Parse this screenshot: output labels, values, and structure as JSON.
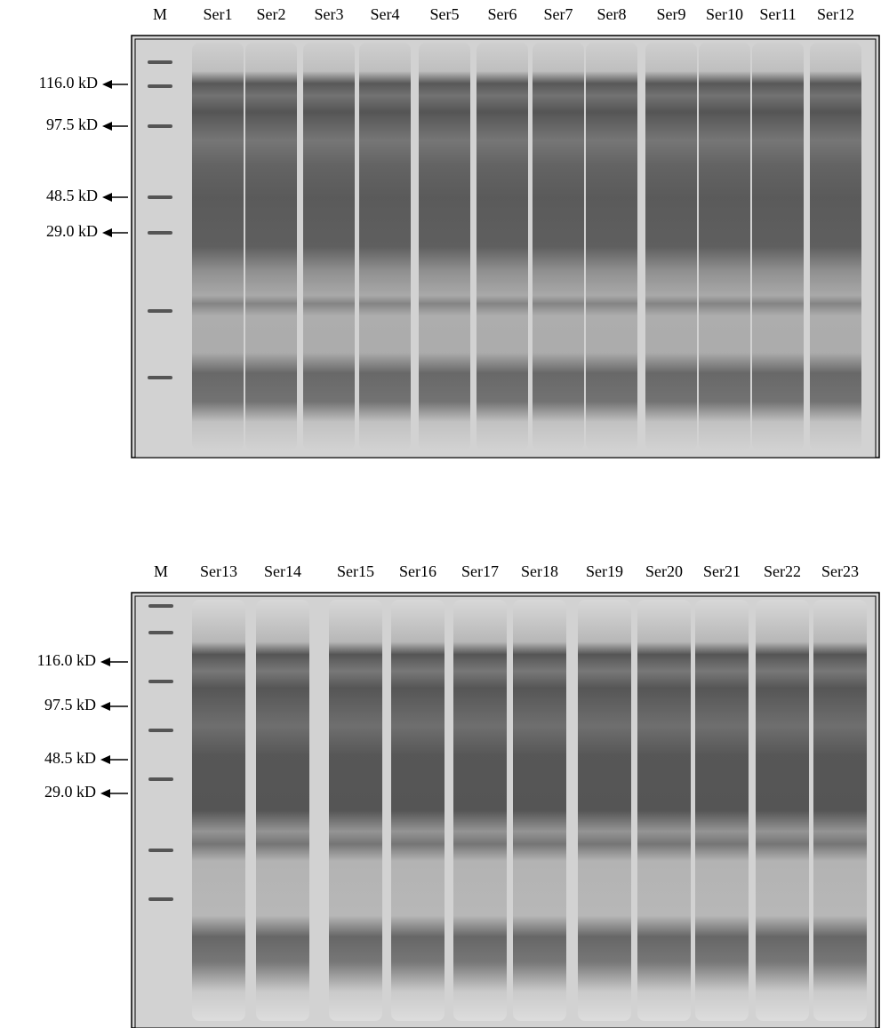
{
  "panels": [
    {
      "lanes": [
        "M",
        "Ser1",
        "Ser2",
        "Ser3",
        "Ser4",
        "Ser5",
        "Ser6",
        "Ser7",
        "Ser8",
        "Ser9",
        "Ser10",
        "Ser11",
        "Ser12"
      ],
      "markers": [
        "116.0 kD",
        "97.5 kD",
        "48.5 kD",
        "29.0 kD"
      ]
    },
    {
      "lanes": [
        "M",
        "Ser13",
        "Ser14",
        "Ser15",
        "Ser16",
        "Ser17",
        "Ser18",
        "Ser19",
        "Ser20",
        "Ser21",
        "Ser22",
        "Ser23"
      ],
      "markers": [
        "116.0 kD",
        "97.5 kD",
        "48.5 kD",
        "29.0 kD"
      ]
    }
  ]
}
